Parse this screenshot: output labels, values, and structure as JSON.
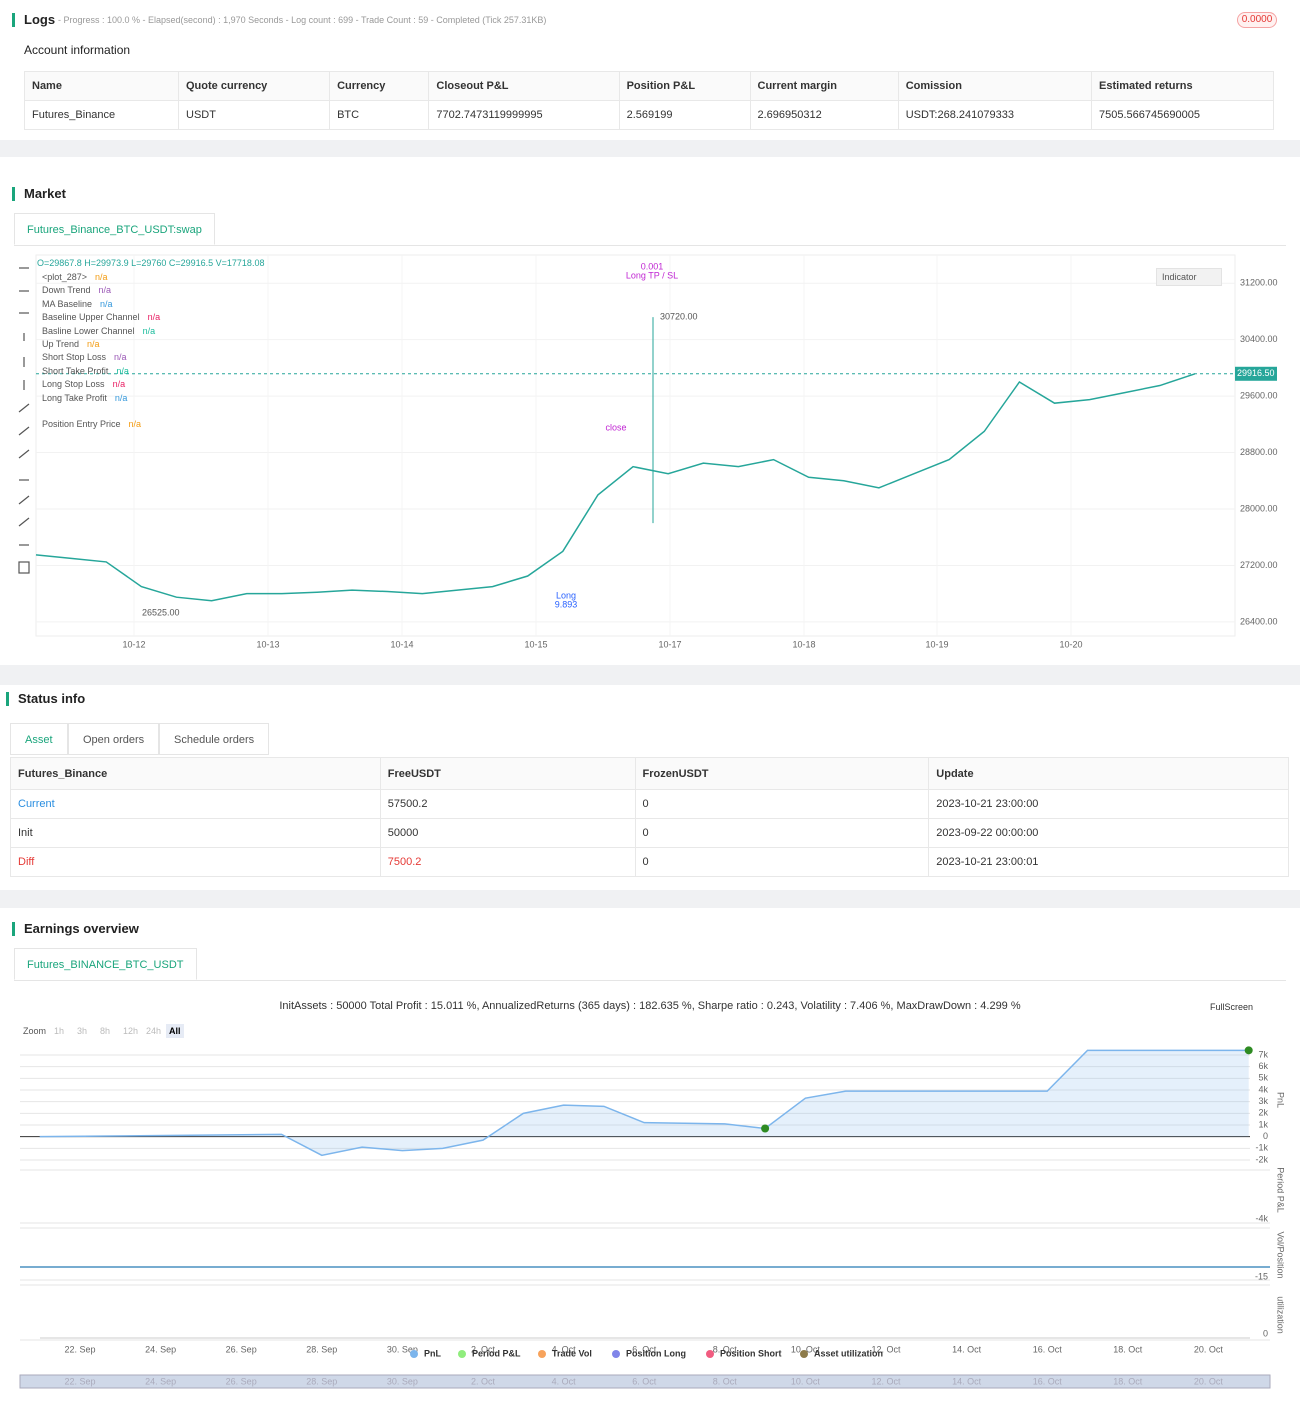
{
  "logs": {
    "title": "Logs",
    "summary": "- Progress : 100.0 % - Elapsed(second) : 1,970 Seconds - Log count : 699 - Trade Count : 59 - Completed (Tick 257.31KB)",
    "badge": "0.0000"
  },
  "account": {
    "title": "Account information",
    "headers": [
      "Name",
      "Quote currency",
      "Currency",
      "Closeout P&L",
      "Position P&L",
      "Current margin",
      "Comission",
      "Estimated returns"
    ],
    "row": [
      "Futures_Binance",
      "USDT",
      "BTC",
      "7702.7473119999995",
      "2.569199",
      "2.696950312",
      "USDT:268.241079333",
      "7505.566745690005"
    ]
  },
  "market": {
    "title": "Market",
    "tab": "Futures_Binance_BTC_USDT:swap",
    "ohlc": "O=29867.8 H=29973.9 L=29760 C=29916.5 V=17718.08",
    "indicator_button": "Indicator",
    "indicators": [
      {
        "name": "<plot_287>",
        "value": "n/a",
        "color": "#f39c12"
      },
      {
        "name": "Down Trend",
        "value": "n/a",
        "color": "#9b59b6"
      },
      {
        "name": "MA Baseline",
        "value": "n/a",
        "color": "#3498db"
      },
      {
        "name": "Baseline Upper Channel",
        "value": "n/a",
        "color": "#e91e63"
      },
      {
        "name": "Basline Lower Channel",
        "value": "n/a",
        "color": "#1abc9c"
      },
      {
        "name": "Up Trend",
        "value": "n/a",
        "color": "#f39c12"
      },
      {
        "name": "Short Stop Loss",
        "value": "n/a",
        "color": "#9b59b6"
      },
      {
        "name": "Short Take Profit",
        "value": "n/a",
        "color": "#1abc9c"
      },
      {
        "name": "Long Stop Loss",
        "value": "n/a",
        "color": "#e91e63"
      },
      {
        "name": "Long Take Profit",
        "value": "n/a",
        "color": "#3498db"
      },
      {
        "name": "Position Entry Price",
        "value": "n/a",
        "color": "#f39c12"
      }
    ],
    "chart_data": {
      "type": "line",
      "x_labels": [
        "10-12",
        "10-13",
        "10-14",
        "10-15",
        "10-17",
        "10-18",
        "10-19",
        "10-20"
      ],
      "values": [
        27350,
        27300,
        27250,
        26900,
        26750,
        26700,
        26800,
        26800,
        26820,
        26850,
        26830,
        26800,
        26850,
        26900,
        27050,
        27400,
        28200,
        28600,
        28500,
        28650,
        28600,
        28700,
        28450,
        28400,
        28300,
        28500,
        28700,
        29100,
        29800,
        29500,
        29550,
        29650,
        29750,
        29916.5
      ],
      "color": "#26a69a",
      "ylim": [
        26200,
        31600
      ],
      "yticks": [
        {
          "value": 26400,
          "label": "26400.00"
        },
        {
          "value": 27200,
          "label": "27200.00"
        },
        {
          "value": 28000,
          "label": "28000.00"
        },
        {
          "value": 28800,
          "label": "28800.00"
        },
        {
          "value": 29600,
          "label": "29600.00"
        },
        {
          "value": 30400,
          "label": "30400.00"
        },
        {
          "value": 31200,
          "label": "31200.00"
        }
      ],
      "last_price": {
        "value": 29916.5,
        "label": "29916.50"
      },
      "high_marker": {
        "value": 30720,
        "label": "30720.00"
      },
      "low_marker": {
        "value": 26525,
        "label": "26525.00"
      },
      "annotations": [
        "0.001",
        "Long TP / SL",
        "Long",
        "9.893",
        "close"
      ]
    }
  },
  "status": {
    "title": "Status info",
    "tabs": [
      "Asset",
      "Open orders",
      "Schedule orders"
    ],
    "headers": [
      "Futures_Binance",
      "FreeUSDT",
      "FrozenUSDT",
      "Update"
    ],
    "rows": [
      [
        "Current",
        "57500.2",
        "0",
        "2023-10-21 23:00:00"
      ],
      [
        "Init",
        "50000",
        "0",
        "2023-09-22 00:00:00"
      ],
      [
        "Diff",
        "7500.2",
        "0",
        "2023-10-21 23:00:01"
      ]
    ]
  },
  "earnings": {
    "title": "Earnings overview",
    "tab": "Futures_BINANCE_BTC_USDT",
    "summary": "InitAssets : 50000 Total Profit : 15.011 %, AnnualizedReturns (365 days) : 182.635 %, Sharpe ratio : 0.243, Volatility : 7.406 %, MaxDrawDown : 4.299 %",
    "zoom": [
      "Zoom",
      "1h",
      "3h",
      "8h",
      "12h",
      "24h",
      "All"
    ],
    "fullscreen": "FullScreen",
    "chart_data": {
      "type": "line",
      "x": [
        "21. Sep",
        "27. Sep",
        "28. Sep",
        "29. Sep",
        "30. Sep",
        "1. Oct",
        "2. Oct",
        "3. Oct",
        "4. Oct",
        "5. Oct",
        "6. Oct",
        "8. Oct",
        "9. Oct",
        "10. Oct",
        "11. Oct",
        "16. Oct",
        "17. Oct",
        "21. Oct"
      ],
      "x_labels": [
        "22. Sep",
        "24. Sep",
        "26. Sep",
        "28. Sep",
        "30. Sep",
        "2. Oct",
        "4. Oct",
        "6. Oct",
        "8. Oct",
        "10. Oct",
        "12. Oct",
        "14. Oct",
        "16. Oct",
        "18. Oct",
        "20. Oct"
      ],
      "series": [
        {
          "name": "PnL",
          "color": "#7cb5ec",
          "values": [
            0,
            200,
            -1600,
            -900,
            -1200,
            -1000,
            -300,
            2000,
            2700,
            2600,
            1200,
            1100,
            700,
            3300,
            3900,
            3900,
            7400,
            7400
          ]
        }
      ],
      "ylim": [
        -2000,
        7000
      ],
      "yticks": [
        {
          "value": -2000,
          "label": "-2k"
        },
        {
          "value": -1000,
          "label": "-1k"
        },
        0,
        {
          "value": 1000,
          "label": "1k"
        },
        {
          "value": 2000,
          "label": "2k"
        },
        {
          "value": 3000,
          "label": "3k"
        },
        {
          "value": 4000,
          "label": "4k"
        },
        {
          "value": 5000,
          "label": "5k"
        },
        {
          "value": 6000,
          "label": "6k"
        },
        {
          "value": 7000,
          "label": "7k"
        }
      ],
      "panel_labels": [
        "PnL",
        "Period P&L",
        "Vol/Position",
        "utilization"
      ],
      "panel_ticks": [
        "-4k",
        "-15",
        "0"
      ],
      "legend": [
        {
          "name": "PnL",
          "color": "#7cb5ec"
        },
        {
          "name": "Period P&L",
          "color": "#90ed7d"
        },
        {
          "name": "Trade Vol",
          "color": "#f7a35c"
        },
        {
          "name": "Position Long",
          "color": "#8085e9"
        },
        {
          "name": "Position Short",
          "color": "#f15c80"
        },
        {
          "name": "Asset utilization",
          "color": "#8d7b4a"
        }
      ]
    }
  }
}
